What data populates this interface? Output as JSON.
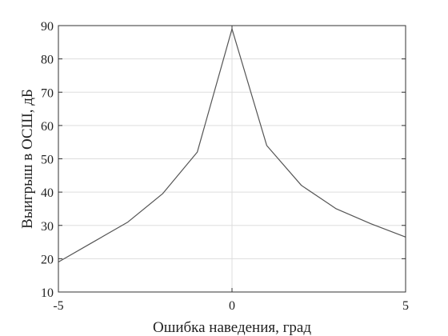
{
  "chart_data": {
    "type": "line",
    "xlabel": "Ошибка наведения, град",
    "ylabel": "Выигрыш в ОСШ, дБ",
    "xlim": [
      -5,
      5
    ],
    "ylim": [
      10,
      90
    ],
    "x_ticks": [
      -5,
      0,
      5
    ],
    "y_ticks": [
      10,
      20,
      30,
      40,
      50,
      60,
      70,
      80,
      90
    ],
    "x_tick_labels": [
      "-5",
      "0",
      "5"
    ],
    "y_tick_labels": [
      "10",
      "20",
      "30",
      "40",
      "50",
      "60",
      "70",
      "80",
      "90"
    ],
    "grid": true,
    "series": [
      {
        "x": [
          -5,
          -4,
          -3,
          -2,
          -1,
          0,
          1,
          2,
          3,
          4,
          5
        ],
        "y": [
          19,
          25,
          31,
          39.5,
          52,
          89,
          54,
          42,
          35,
          30.5,
          26.5
        ]
      }
    ],
    "colors": {
      "line": "#555555",
      "grid": "#dddddd",
      "axis": "#333333"
    }
  }
}
